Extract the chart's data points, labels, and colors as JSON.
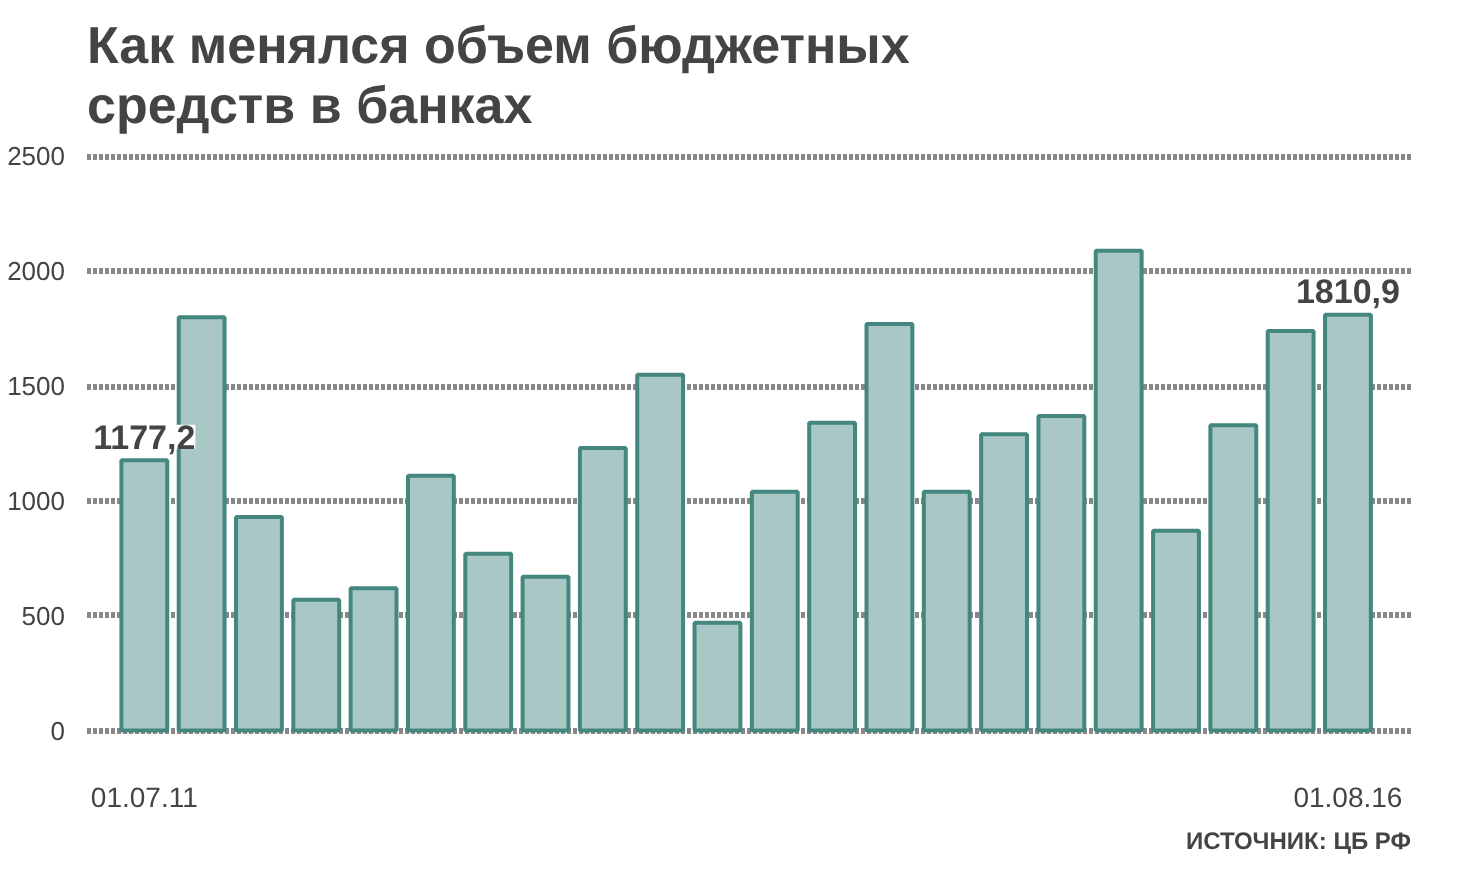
{
  "chart_data": {
    "type": "bar",
    "title": "Как менялся объем бюджетных средств в банках",
    "categories": [
      "01.07.11",
      null,
      null,
      null,
      null,
      null,
      null,
      null,
      null,
      null,
      null,
      null,
      null,
      null,
      null,
      null,
      null,
      null,
      null,
      null,
      null,
      "01.08.16"
    ],
    "values": [
      1177.2,
      1800,
      930,
      570,
      620,
      1110,
      770,
      670,
      1230,
      1550,
      470,
      1040,
      1340,
      1770,
      1040,
      1290,
      1370,
      2090,
      870,
      1330,
      1740,
      1810.9
    ],
    "value_labels": [
      "1177,2",
      null,
      null,
      null,
      null,
      null,
      null,
      null,
      null,
      null,
      null,
      null,
      null,
      null,
      null,
      null,
      null,
      null,
      null,
      null,
      null,
      "1810,9"
    ],
    "color": "#a8c7c5",
    "ylim": [
      0,
      2500
    ],
    "yticks": [
      0,
      500,
      1000,
      1500,
      2000,
      2500
    ],
    "grid": "y",
    "annotations": [
      "ИСТОЧНИК: ЦБ РФ"
    ]
  }
}
